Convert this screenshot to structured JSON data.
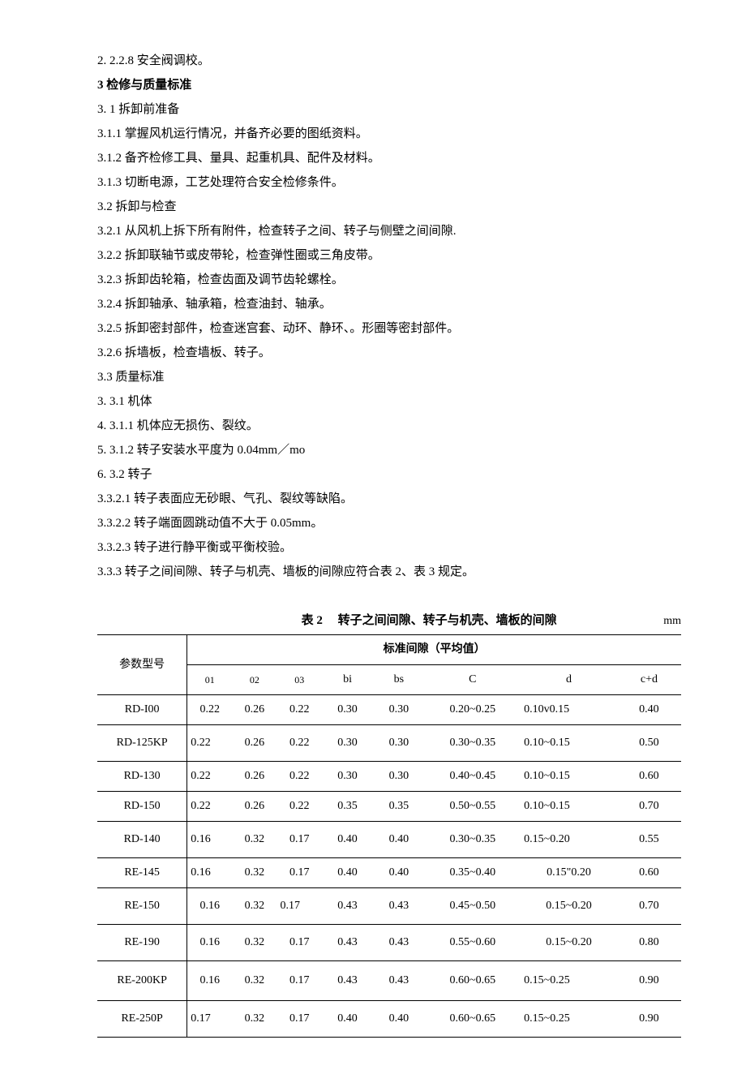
{
  "lines": [
    {
      "text": "2.  2.2.8 安全阀调校。",
      "bold": false
    },
    {
      "text": "3      检修与质量标准",
      "bold": true
    },
    {
      "text": "3.  1 拆卸前准备",
      "bold": false
    },
    {
      "text": "3.1.1      掌握风机运行情况，并备齐必要的图纸资料。",
      "bold": false
    },
    {
      "text": "3.1.2      备齐检修工具、量具、起重机具、配件及材料。",
      "bold": false
    },
    {
      "text": "3.1.3      切断电源，工艺处理符合安全检修条件。",
      "bold": false
    },
    {
      "text": "3.2 拆卸与检查",
      "bold": false
    },
    {
      "text": "3.2.1 从风机上拆下所有附件，检查转子之间、转子与侧壁之间间隙.",
      "bold": false
    },
    {
      "text": "3.2.2 拆卸联轴节或皮带轮，检查弹性圈或三角皮带。",
      "bold": false
    },
    {
      "text": "3.2.3 拆卸齿轮箱，检查齿面及调节齿轮螺栓。",
      "bold": false
    },
    {
      "text": "3.2.4 拆卸轴承、轴承箱，检查油封、轴承。",
      "bold": false
    },
    {
      "text": "3.2.5      拆卸密封部件，检查迷宫套、动环、静环、。形圈等密封部件。",
      "bold": false
    },
    {
      "text": "3.2.6 拆墙板，检查墙板、转子。",
      "bold": false
    },
    {
      "text": "3.3 质量标准",
      "bold": false
    },
    {
      "text": "3.  3.1 机体",
      "bold": false
    },
    {
      "text": "4.  3.1.1      机体应无损伤、裂纹。",
      "bold": false
    },
    {
      "text": "5.  3.1.2 转子安装水平度为 0.04mm／mo",
      "bold": false
    },
    {
      "text": "6.  3.2 转子",
      "bold": false
    },
    {
      "text": "3.3.2.1      转子表面应无砂眼、气孔、裂纹等缺陷。",
      "bold": false
    },
    {
      "text": "3.3.2.2      转子端面圆跳动值不大于 0.05mm。",
      "bold": false
    },
    {
      "text": "3.3.2.3      转子进行静平衡或平衡校验。",
      "bold": false
    },
    {
      "text": "3.3.3 转子之间间隙、转子与机壳、墙板的间隙应符合表 2、表 3 规定。",
      "bold": false
    }
  ],
  "table": {
    "caption_prefix": "表 2",
    "caption": "转子之间间隙、转子与机壳、墙板的间隙",
    "unit": "mm",
    "header_group": "标准间隙（平均值）",
    "param_label": "参数型号",
    "cols": [
      "01",
      "02",
      "03",
      "bi",
      "bs",
      "C",
      "d",
      "c+d"
    ],
    "col_big": [
      false,
      false,
      false,
      true,
      true,
      true,
      true,
      true
    ],
    "rows": [
      {
        "model": "RD-I00",
        "v": [
          "0.22",
          "0.26",
          "0.22",
          "0.30",
          "0.30",
          "0.20~0.25",
          "0.10v0.15",
          "0.40"
        ],
        "la": [
          false,
          false,
          false,
          false,
          false,
          false,
          true,
          false
        ],
        "cls": ""
      },
      {
        "model": "RD-125KP",
        "v": [
          "0.22",
          "0.26",
          "0.22",
          "0.30",
          "0.30",
          "0.30~0.35",
          "0.10~0.15",
          "0.50"
        ],
        "la": [
          true,
          false,
          false,
          false,
          false,
          false,
          true,
          false
        ],
        "cls": "gap"
      },
      {
        "model": "RD-130",
        "v": [
          "0.22",
          "0.26",
          "0.22",
          "0.30",
          "0.30",
          "0.40~0.45",
          "0.10~0.15",
          "0.60"
        ],
        "la": [
          true,
          false,
          false,
          false,
          false,
          false,
          true,
          false
        ],
        "cls": ""
      },
      {
        "model": "RD-150",
        "v": [
          "0.22",
          "0.26",
          "0.22",
          "0.35",
          "0.35",
          "0.50~0.55",
          "0.10~0.15",
          "0.70"
        ],
        "la": [
          true,
          false,
          false,
          false,
          false,
          false,
          true,
          false
        ],
        "cls": ""
      },
      {
        "model": "RD-140",
        "v": [
          "0.16",
          "0.32",
          "0.17",
          "0.40",
          "0.40",
          "0.30~0.35",
          "0.15~0.20",
          "0.55"
        ],
        "la": [
          true,
          false,
          false,
          false,
          false,
          false,
          true,
          false
        ],
        "cls": "gap"
      },
      {
        "model": "RE-145",
        "v": [
          "0.16",
          "0.32",
          "0.17",
          "0.40",
          "0.40",
          "0.35~0.40",
          "0.15\"0.20",
          "0.60"
        ],
        "la": [
          true,
          false,
          false,
          false,
          false,
          false,
          false,
          false
        ],
        "cls": ""
      },
      {
        "model": "RE-150",
        "v": [
          "0.16",
          "0.32",
          "0.17",
          "0.43",
          "0.43",
          "0.45~0.50",
          "0.15~0.20",
          "0.70"
        ],
        "la": [
          false,
          false,
          true,
          false,
          false,
          false,
          false,
          false
        ],
        "cls": "gap"
      },
      {
        "model": "RE-190",
        "v": [
          "0.16",
          "0.32",
          "0.17",
          "0.43",
          "0.43",
          "0.55~0.60",
          "0.15~0.20",
          "0.80"
        ],
        "la": [
          false,
          false,
          false,
          false,
          false,
          false,
          false,
          false
        ],
        "cls": "gap"
      },
      {
        "model": "RE-200KP",
        "v": [
          "0.16",
          "0.32",
          "0.17",
          "0.43",
          "0.43",
          "0.60~0.65",
          "0.15~0.25",
          "0.90"
        ],
        "la": [
          false,
          false,
          false,
          false,
          false,
          false,
          true,
          false
        ],
        "cls": "extra"
      },
      {
        "model": "RE-250P",
        "v": [
          "0.17",
          "0.32",
          "0.17",
          "0.40",
          "0.40",
          "0.60~0.65",
          "0.15~0.25",
          "0.90"
        ],
        "la": [
          true,
          false,
          false,
          false,
          false,
          false,
          true,
          false
        ],
        "cls": "gap"
      }
    ],
    "col_widths": [
      "14%",
      "7%",
      "7%",
      "7%",
      "8%",
      "8%",
      "15%",
      "15%",
      "10%"
    ]
  }
}
